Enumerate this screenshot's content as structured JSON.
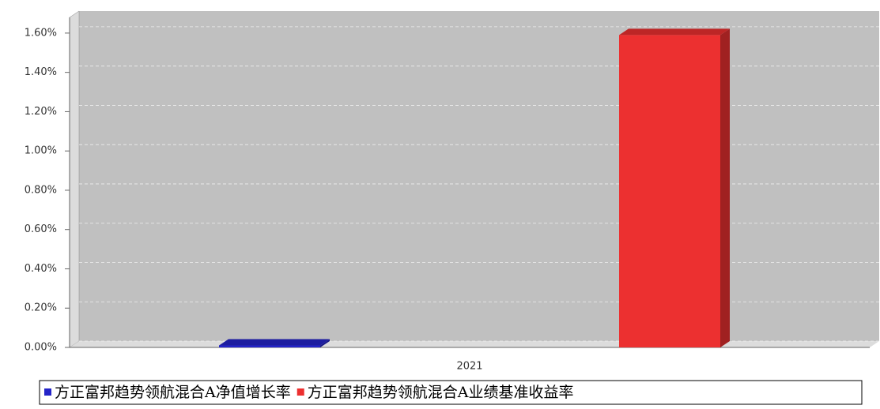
{
  "chart_data": {
    "type": "bar3d",
    "categories": [
      "2021"
    ],
    "series": [
      {
        "name": "方正富邦趋势领航混合A净值增长率",
        "color": "#2424c8",
        "values": [
          0.01
        ]
      },
      {
        "name": "方正富邦趋势领航混合A业绩基准收益率",
        "color": "#ec3030",
        "values": [
          1.59
        ]
      }
    ],
    "ylim": [
      0,
      1.68
    ],
    "yticks": [
      {
        "value": 0,
        "label": "0.00%"
      },
      {
        "value": 0.2,
        "label": "0.20%"
      },
      {
        "value": 0.4,
        "label": "0.40%"
      },
      {
        "value": 0.6,
        "label": "0.60%"
      },
      {
        "value": 0.8,
        "label": "0.80%"
      },
      {
        "value": 1.0,
        "label": "1.00%"
      },
      {
        "value": 1.2,
        "label": "1.20%"
      },
      {
        "value": 1.4,
        "label": "1.40%"
      },
      {
        "value": 1.6,
        "label": "1.60%"
      }
    ],
    "grid": true
  }
}
